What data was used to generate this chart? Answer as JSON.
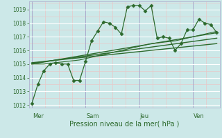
{
  "xlabel": "Pression niveau de la mer( hPa )",
  "bg_color": "#cce8e8",
  "grid_major_color": "#ffffff",
  "grid_minor_color": "#e8c8c8",
  "vgrid_major_color": "#aaaacc",
  "line_color": "#2d6a2d",
  "ylim": [
    1011.8,
    1019.6
  ],
  "yticks": [
    1012,
    1013,
    1014,
    1015,
    1016,
    1017,
    1018,
    1019
  ],
  "day_labels": [
    "Mer",
    "Sam",
    "Jeu",
    "Ven"
  ],
  "day_positions": [
    0,
    36,
    72,
    108
  ],
  "xlim": [
    -2,
    126
  ],
  "series1_x": [
    0,
    4,
    8,
    12,
    16,
    20,
    24,
    28,
    32,
    36,
    40,
    44,
    48,
    52,
    56,
    60,
    64,
    68,
    72,
    76,
    80,
    84,
    88,
    92,
    96,
    100,
    104,
    108,
    112,
    116,
    120,
    124
  ],
  "series1_y": [
    1012.1,
    1013.5,
    1014.5,
    1015.0,
    1015.1,
    1015.0,
    1015.0,
    1013.8,
    1013.8,
    1015.2,
    1016.7,
    1017.4,
    1018.1,
    1018.0,
    1017.7,
    1017.2,
    1019.2,
    1019.3,
    1019.3,
    1018.9,
    1019.3,
    1016.9,
    1017.0,
    1016.9,
    1016.0,
    1016.5,
    1017.5,
    1017.5,
    1018.3,
    1018.0,
    1017.9,
    1017.3
  ],
  "trend1_x": [
    0,
    124
  ],
  "trend1_y": [
    1015.0,
    1017.3
  ],
  "trend2_x": [
    0,
    124
  ],
  "trend2_y": [
    1015.05,
    1016.9
  ],
  "trend3_x": [
    0,
    124
  ],
  "trend3_y": [
    1015.1,
    1016.5
  ],
  "smooth_x": [
    0,
    4,
    8,
    12,
    16,
    20,
    24,
    28,
    32,
    36,
    40,
    44,
    48,
    52,
    56,
    60,
    64,
    68,
    72,
    76,
    80,
    84,
    88,
    92,
    96,
    100,
    104,
    108,
    112,
    116,
    120,
    124
  ],
  "smooth_y": [
    1015.0,
    1015.0,
    1015.0,
    1015.05,
    1015.1,
    1015.15,
    1015.2,
    1015.25,
    1015.3,
    1015.4,
    1015.5,
    1015.6,
    1015.7,
    1015.8,
    1015.9,
    1016.0,
    1016.1,
    1016.2,
    1016.3,
    1016.4,
    1016.5,
    1016.55,
    1016.6,
    1016.65,
    1016.7,
    1016.8,
    1016.9,
    1017.0,
    1017.1,
    1017.2,
    1017.3,
    1017.4
  ]
}
